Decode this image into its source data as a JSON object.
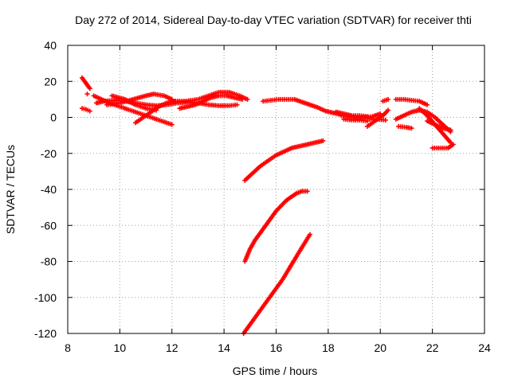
{
  "chart_data": {
    "type": "scatter",
    "title": "Day 272 of 2014, Sidereal Day-to-day VTEC variation (SDTVAR) for receiver thti",
    "xlabel": "GPS time / hours",
    "ylabel": "SDTVAR / TECUs",
    "xlim": [
      8,
      24
    ],
    "ylim": [
      -120,
      40
    ],
    "xticks": [
      "8",
      "10",
      "12",
      "14",
      "16",
      "18",
      "20",
      "22",
      "24"
    ],
    "yticks": [
      "40",
      "20",
      "0",
      "-20",
      "-40",
      "-60",
      "-80",
      "-100",
      "-120"
    ],
    "grid": true,
    "marker": "+",
    "color": "#ff0000",
    "series": [
      {
        "name": "s1",
        "x": [
          8.55,
          8.7,
          8.85
        ],
        "y": [
          22,
          19,
          16
        ]
      },
      {
        "name": "s2",
        "x": [
          8.55,
          8.7,
          8.85
        ],
        "y": [
          5,
          4.5,
          3.5
        ]
      },
      {
        "name": "s2b",
        "x": [
          8.75
        ],
        "y": [
          13
        ]
      },
      {
        "name": "s3",
        "x": [
          9.1,
          9.4,
          9.8,
          10.2,
          10.6,
          11.0,
          11.4,
          11.8,
          12.2,
          12.6,
          13.0,
          13.4,
          13.8,
          14.2,
          14.5
        ],
        "y": [
          8,
          9,
          9.5,
          9,
          8,
          7,
          6.5,
          7,
          8,
          8.5,
          8,
          7,
          6.5,
          6.5,
          7
        ]
      },
      {
        "name": "s4",
        "x": [
          9.0,
          9.3,
          9.6,
          10.0,
          10.4,
          10.8,
          11.2,
          11.6,
          12.0
        ],
        "y": [
          12,
          10,
          8,
          6,
          4,
          2,
          0,
          -2,
          -4
        ]
      },
      {
        "name": "s5",
        "x": [
          9.5,
          10.0,
          10.5,
          11.0,
          11.3,
          11.7,
          12.0
        ],
        "y": [
          7,
          8,
          10,
          12,
          13,
          12,
          10
        ]
      },
      {
        "name": "s6",
        "x": [
          9.7,
          10.2,
          10.6,
          11.0,
          11.4
        ],
        "y": [
          12,
          10,
          7,
          5,
          4
        ]
      },
      {
        "name": "s7",
        "x": [
          10.6,
          10.9,
          11.2,
          11.5,
          11.8,
          12.1
        ],
        "y": [
          -3,
          0,
          3,
          6,
          8,
          9
        ]
      },
      {
        "name": "s8",
        "x": [
          12.0,
          12.5,
          13.0,
          13.4,
          13.8,
          14.2,
          14.6,
          14.9
        ],
        "y": [
          9,
          9,
          10,
          12,
          14,
          14,
          12,
          10
        ]
      },
      {
        "name": "s9",
        "x": [
          12.3,
          12.6,
          12.9,
          13.2,
          13.5,
          13.8,
          14.1,
          14.4,
          14.7
        ],
        "y": [
          5,
          6,
          7,
          9,
          11,
          12,
          12,
          11,
          10
        ]
      },
      {
        "name": "s10",
        "x": [
          15.5,
          15.8,
          16.1,
          16.4,
          16.7,
          17.0,
          17.3,
          17.6,
          17.9,
          18.2,
          18.5
        ],
        "y": [
          9,
          9.5,
          10,
          10,
          10,
          8.5,
          7,
          5.5,
          3.5,
          2.5,
          1.5
        ]
      },
      {
        "name": "s11",
        "x": [
          18.5,
          18.8,
          19.1,
          19.4,
          19.7,
          20.0
        ],
        "y": [
          1,
          0.5,
          0,
          0,
          0.5,
          2
        ]
      },
      {
        "name": "s12",
        "x": [
          18.6,
          18.9,
          19.2,
          19.5
        ],
        "y": [
          -1,
          -1.5,
          -1.5,
          -2
        ]
      },
      {
        "name": "s13",
        "x": [
          18.3,
          18.6,
          18.9,
          19.2,
          19.5
        ],
        "y": [
          3,
          2,
          1,
          1,
          0.5
        ]
      },
      {
        "name": "s14",
        "x": [
          19.5,
          19.8,
          20.1,
          20.3
        ],
        "y": [
          -5,
          -2,
          1,
          4
        ]
      },
      {
        "name": "s15",
        "x": [
          19.6,
          19.9,
          20.2
        ],
        "y": [
          -1,
          -1,
          -1.5
        ]
      },
      {
        "name": "s16",
        "x": [
          20.1,
          20.3
        ],
        "y": [
          9,
          10
        ]
      },
      {
        "name": "s17",
        "x": [
          20.6,
          20.9,
          21.2,
          21.5,
          21.8
        ],
        "y": [
          10,
          10,
          9.5,
          9,
          7
        ]
      },
      {
        "name": "s18",
        "x": [
          20.6,
          20.9,
          21.2,
          21.5,
          21.8,
          22.1,
          22.4,
          22.7
        ],
        "y": [
          -1,
          1,
          3,
          4,
          3,
          0,
          -4,
          -8
        ]
      },
      {
        "name": "s19",
        "x": [
          20.7,
          21.0,
          21.2
        ],
        "y": [
          -5,
          -5.5,
          -6
        ]
      },
      {
        "name": "s20",
        "x": [
          21.5,
          21.8,
          22.1,
          22.4,
          22.7
        ],
        "y": [
          5,
          1,
          -4,
          -9,
          -14
        ]
      },
      {
        "name": "s21",
        "x": [
          22.0,
          22.3,
          22.6,
          22.8
        ],
        "y": [
          -17,
          -17,
          -17,
          -15
        ]
      },
      {
        "name": "s22",
        "x": [
          21.8,
          22.1,
          22.4,
          22.7
        ],
        "y": [
          -2,
          -4,
          -6,
          -7
        ]
      },
      {
        "name": "s23",
        "x": [
          14.8,
          15.1,
          15.4,
          15.7,
          16.0,
          16.3,
          16.6,
          16.9,
          17.2,
          17.5,
          17.8
        ],
        "y": [
          -35,
          -31,
          -27,
          -24,
          -21,
          -19,
          -17,
          -16,
          -15,
          -14,
          -13
        ]
      },
      {
        "name": "s24",
        "x": [
          14.8,
          15.0,
          15.2,
          15.4,
          15.6,
          15.8,
          16.0,
          16.2,
          16.4,
          16.6,
          16.8,
          17.0,
          17.2
        ],
        "y": [
          -80,
          -73,
          -68,
          -64,
          -60,
          -56,
          -52,
          -49,
          -46,
          -44,
          -42,
          -41,
          -41
        ]
      },
      {
        "name": "s25",
        "x": [
          14.75,
          15.0,
          15.25,
          15.5,
          15.75,
          16.0,
          16.25,
          16.5,
          16.75,
          17.0,
          17.3
        ],
        "y": [
          -120,
          -115,
          -110,
          -105,
          -100,
          -95,
          -90,
          -84,
          -78,
          -72,
          -65
        ]
      }
    ]
  }
}
